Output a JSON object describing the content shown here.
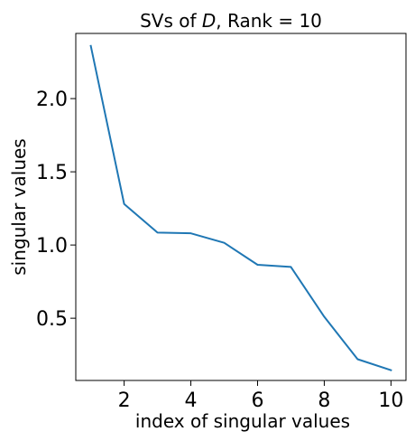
{
  "chart_data": {
    "type": "line",
    "title_parts": [
      "SVs of ",
      "D",
      ", Rank = 10"
    ],
    "xlabel": "index of singular values",
    "ylabel": "singular values",
    "xlim": [
      0.55,
      10.45
    ],
    "ylim": [
      0.075,
      2.445
    ],
    "xticks": [
      2,
      4,
      6,
      8,
      10
    ],
    "yticks": [
      0.5,
      1.0,
      1.5,
      2.0
    ],
    "ytick_labels": [
      "0.5",
      "1.0",
      "1.5",
      "2.0"
    ],
    "grid": false,
    "series": [
      {
        "color": "#1f77b4",
        "x": [
          1,
          2,
          3,
          4,
          5,
          6,
          7,
          8,
          9,
          10
        ],
        "y": [
          2.36,
          1.28,
          1.085,
          1.08,
          1.015,
          0.865,
          0.85,
          0.51,
          0.22,
          0.145
        ]
      }
    ]
  }
}
